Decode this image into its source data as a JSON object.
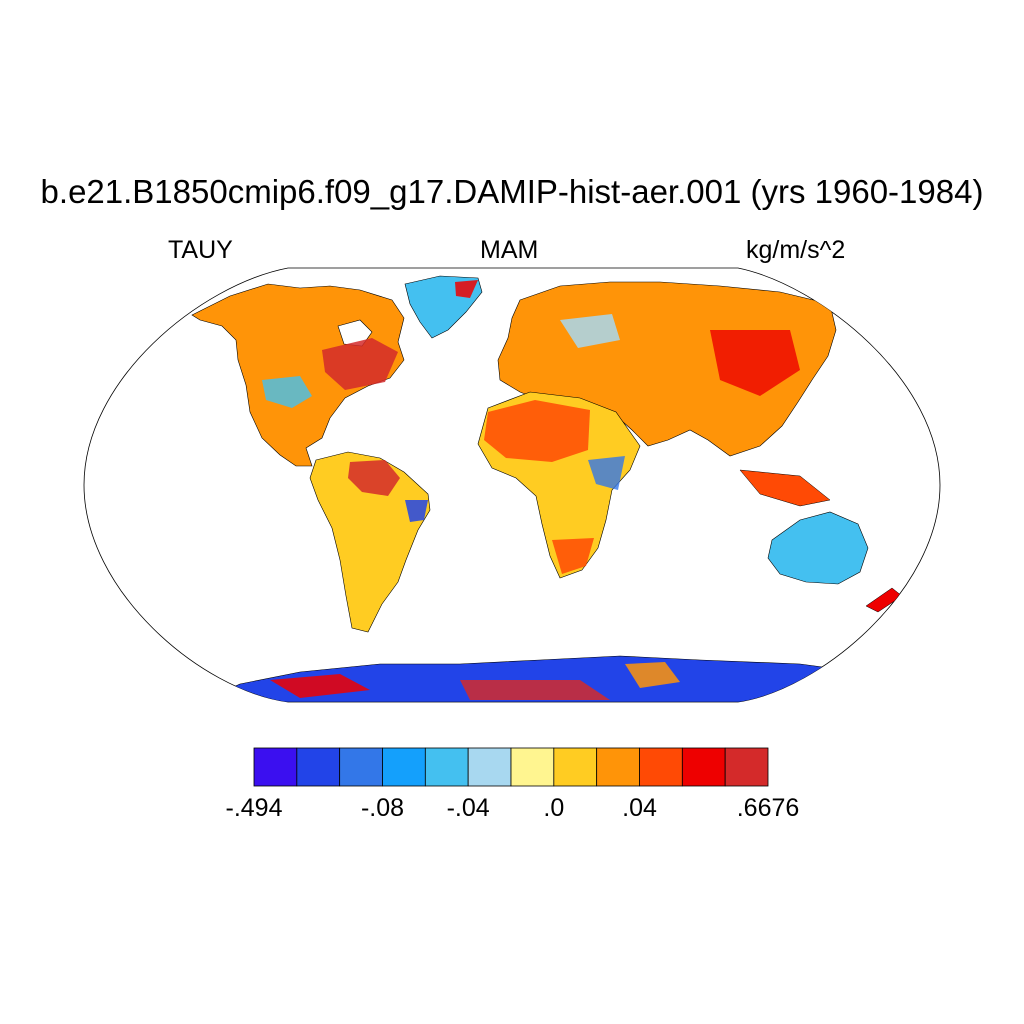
{
  "title": "b.e21.B1850cmip6.f09_g17.DAMIP-hist-aer.001 (yrs 1960-1984)",
  "variable": "TAUY",
  "season": "MAM",
  "units": "kg/m/s^2",
  "colorbar": {
    "colors": [
      "#3b0ff0",
      "#2244e8",
      "#3377e8",
      "#14a0fc",
      "#44c0f0",
      "#a8d8f0",
      "#fff590",
      "#ffcc22",
      "#ff9408",
      "#ff4a05",
      "#ee0000",
      "#d42a2a"
    ],
    "labels": [
      {
        "text": "-.494",
        "boundary": 0
      },
      {
        "text": "-.08",
        "boundary": 3
      },
      {
        "text": "-.04",
        "boundary": 5
      },
      {
        "text": ".0",
        "boundary": 7
      },
      {
        "text": ".04",
        "boundary": 9
      },
      {
        "text": ".6676",
        "boundary": 12
      }
    ]
  },
  "regions": [
    {
      "name": "north-america",
      "color": "#ff9408"
    },
    {
      "name": "greenland",
      "color": "#44c0f0"
    },
    {
      "name": "south-america",
      "color": "#ffcc22"
    },
    {
      "name": "europe-asia",
      "color": "#ff9408"
    },
    {
      "name": "africa",
      "color": "#ffcc22"
    },
    {
      "name": "australia",
      "color": "#44c0f0"
    },
    {
      "name": "antarctica",
      "color": "#2244e8"
    }
  ]
}
